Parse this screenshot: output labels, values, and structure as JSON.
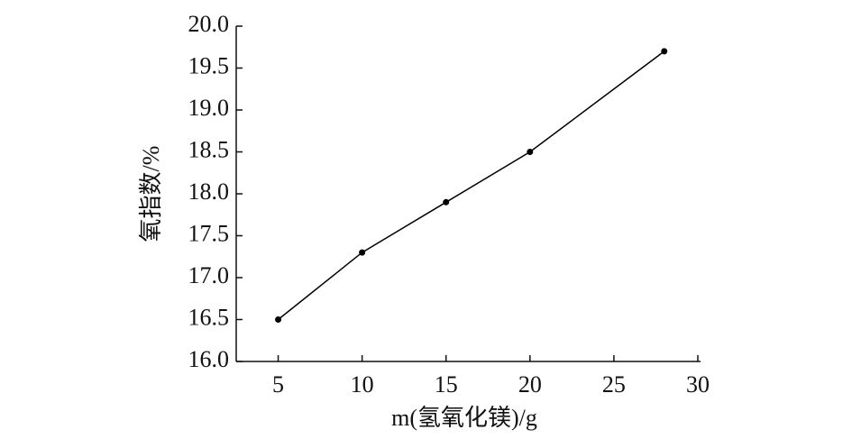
{
  "chart_data": {
    "type": "line",
    "x": [
      5,
      10,
      15,
      20,
      28
    ],
    "series": [
      {
        "name": "氧指数",
        "color": "#000000",
        "values": [
          16.5,
          17.3,
          17.9,
          18.5,
          19.7
        ]
      }
    ],
    "xlabel": "m(氢氧化镁)/g",
    "ylabel": "氧指数/%",
    "xlim": [
      2.5,
      30
    ],
    "xticks": [
      5,
      10,
      15,
      20,
      25,
      30
    ],
    "ylim": [
      16,
      20
    ],
    "yticks": [
      {
        "value": 16,
        "label": "16.0"
      },
      {
        "value": 16.5,
        "label": "16.5"
      },
      {
        "value": 17,
        "label": "17.0"
      },
      {
        "value": 17.5,
        "label": "17.5"
      },
      {
        "value": 18,
        "label": "18.0"
      },
      {
        "value": 18.5,
        "label": "18.5"
      },
      {
        "value": 19,
        "label": "19.0"
      },
      {
        "value": 19.5,
        "label": "19.5"
      },
      {
        "value": 20,
        "label": "20.0"
      }
    ],
    "grid": false
  }
}
